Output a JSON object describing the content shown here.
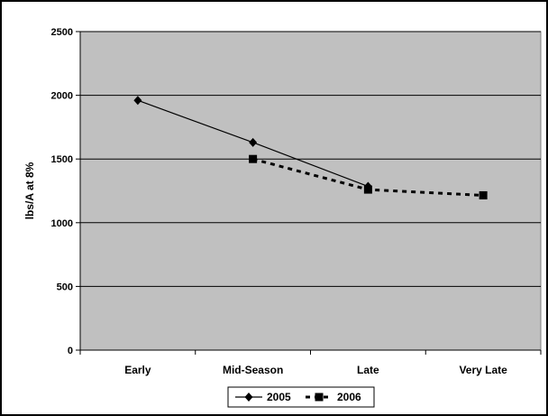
{
  "chart_data": {
    "type": "line",
    "title": "",
    "xlabel": "",
    "ylabel": "lbs/A at 8%",
    "categories": [
      "Early",
      "Mid-Season",
      "Late",
      "Very Late"
    ],
    "ylim": [
      0,
      2500
    ],
    "yticks": [
      0,
      500,
      1000,
      1500,
      2000,
      2500
    ],
    "grid": true,
    "legend_position": "bottom",
    "plot_background": "#c0c0c0",
    "series": [
      {
        "name": "2005",
        "values": [
          1960,
          1630,
          1285,
          null
        ],
        "marker": "diamond",
        "line_style": "solid",
        "color": "#000000"
      },
      {
        "name": "2006",
        "values": [
          null,
          1500,
          1260,
          1215
        ],
        "marker": "square",
        "line_style": "dashed",
        "color": "#000000"
      }
    ]
  }
}
